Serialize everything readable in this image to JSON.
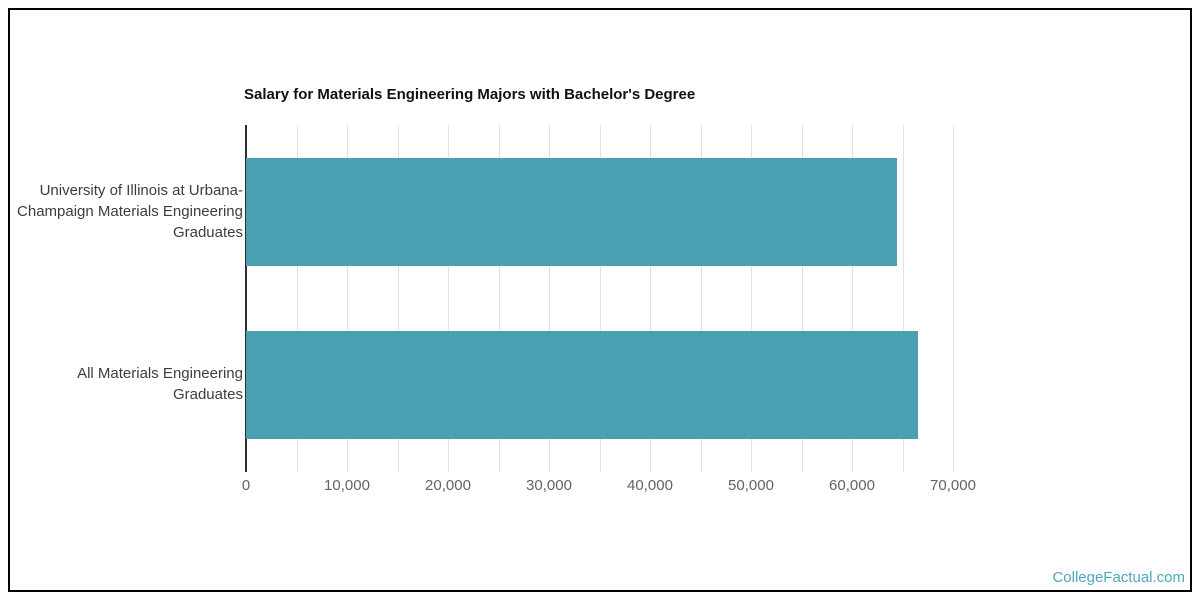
{
  "page": {
    "watermark": "CollegeFactual.com"
  },
  "colors": {
    "bar": "#4A9FB0",
    "grid": "#E2E2E2",
    "axis": "#2E2E2E",
    "frame_border": "#000000",
    "title_text": "#111111",
    "category_text": "#3D3D3D",
    "tick_text": "#5F6368",
    "watermark_text": "#4FA6BC"
  },
  "chart_data": {
    "type": "bar",
    "orientation": "horizontal",
    "title": "Salary for Materials Engineering Majors with Bachelor's Degree",
    "categories": [
      "University of Illinois at Urbana-\nChampaign Materials Engineering\nGraduates",
      "All Materials Engineering\nGraduates"
    ],
    "values": [
      64500,
      66500
    ],
    "xlabel": "",
    "ylabel": "",
    "xlim": [
      0,
      75000
    ],
    "x_major_ticks": [
      0,
      10000,
      20000,
      30000,
      40000,
      50000,
      60000,
      70000
    ],
    "x_minor_tick_interval": 5000,
    "tick_format": "thousands-comma",
    "grid": true,
    "legend": false
  }
}
